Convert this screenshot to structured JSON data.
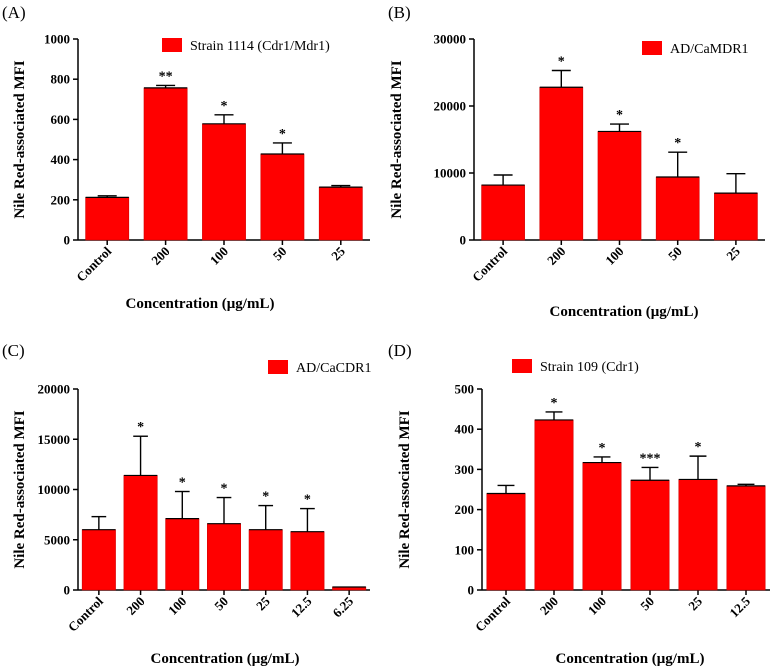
{
  "colors": {
    "bar": "#ff0000",
    "axis": "#000000"
  },
  "chart_data": [
    {
      "type": "bar",
      "panel_label": "(A)",
      "title": "",
      "xlabel": "Concentration (μg/mL)",
      "ylabel": "Nile Red-associated MFI",
      "ylim": [
        0,
        1000
      ],
      "yticks": [
        0,
        200,
        400,
        600,
        800,
        1000
      ],
      "legend": {
        "label": "Strain 1114 (Cdr1/Mdr1)",
        "position": "top-right"
      },
      "categories": [
        "Control",
        "200",
        "100",
        "50",
        "25"
      ],
      "values": [
        212,
        757,
        578,
        428,
        263
      ],
      "errors": [
        8,
        12,
        45,
        55,
        8
      ],
      "significance": [
        "",
        "**",
        "*",
        "*",
        ""
      ]
    },
    {
      "type": "bar",
      "panel_label": "(B)",
      "title": "",
      "xlabel": "Concentration (μg/mL)",
      "ylabel": "Nile Red-associated MFI",
      "ylim": [
        0,
        30000
      ],
      "yticks": [
        0,
        10000,
        20000,
        30000
      ],
      "legend": {
        "label": "AD/CaMDR1",
        "position": "top-right"
      },
      "categories": [
        "Control",
        "200",
        "100",
        "50",
        "25"
      ],
      "values": [
        8200,
        22800,
        16200,
        9400,
        7000
      ],
      "errors": [
        1500,
        2500,
        1100,
        3700,
        2900
      ],
      "significance": [
        "",
        "*",
        "*",
        "*",
        ""
      ]
    },
    {
      "type": "bar",
      "panel_label": "(C)",
      "title": "",
      "xlabel": "Concentration (μg/mL)",
      "ylabel": "Nile Red-associated MFI",
      "ylim": [
        0,
        20000
      ],
      "yticks": [
        0,
        5000,
        10000,
        15000,
        20000
      ],
      "legend": {
        "label": "AD/CaCDR1",
        "position": "top-right"
      },
      "categories": [
        "Control",
        "200",
        "100",
        "50",
        "25",
        "12.5",
        "6.25"
      ],
      "values": [
        6000,
        11400,
        7100,
        6600,
        6000,
        5800,
        300
      ],
      "errors": [
        1300,
        3900,
        2700,
        2600,
        2400,
        2300,
        0
      ],
      "significance": [
        "",
        "*",
        "*",
        "*",
        "*",
        "*",
        ""
      ]
    },
    {
      "type": "bar",
      "panel_label": "(D)",
      "title": "",
      "xlabel": "Concentration (μg/mL)",
      "ylabel": "Nile Red-associated MFI",
      "ylim": [
        0,
        500
      ],
      "yticks": [
        0,
        100,
        200,
        300,
        400,
        500
      ],
      "legend": {
        "label": "Strain 109 (Cdr1)",
        "position": "top-right"
      },
      "categories": [
        "Control",
        "200",
        "100",
        "50",
        "25",
        "12.5"
      ],
      "values": [
        240,
        423,
        317,
        273,
        275,
        259
      ],
      "errors": [
        20,
        20,
        14,
        32,
        58,
        4
      ],
      "significance": [
        "",
        "*",
        "*",
        "***",
        "*",
        ""
      ]
    }
  ]
}
